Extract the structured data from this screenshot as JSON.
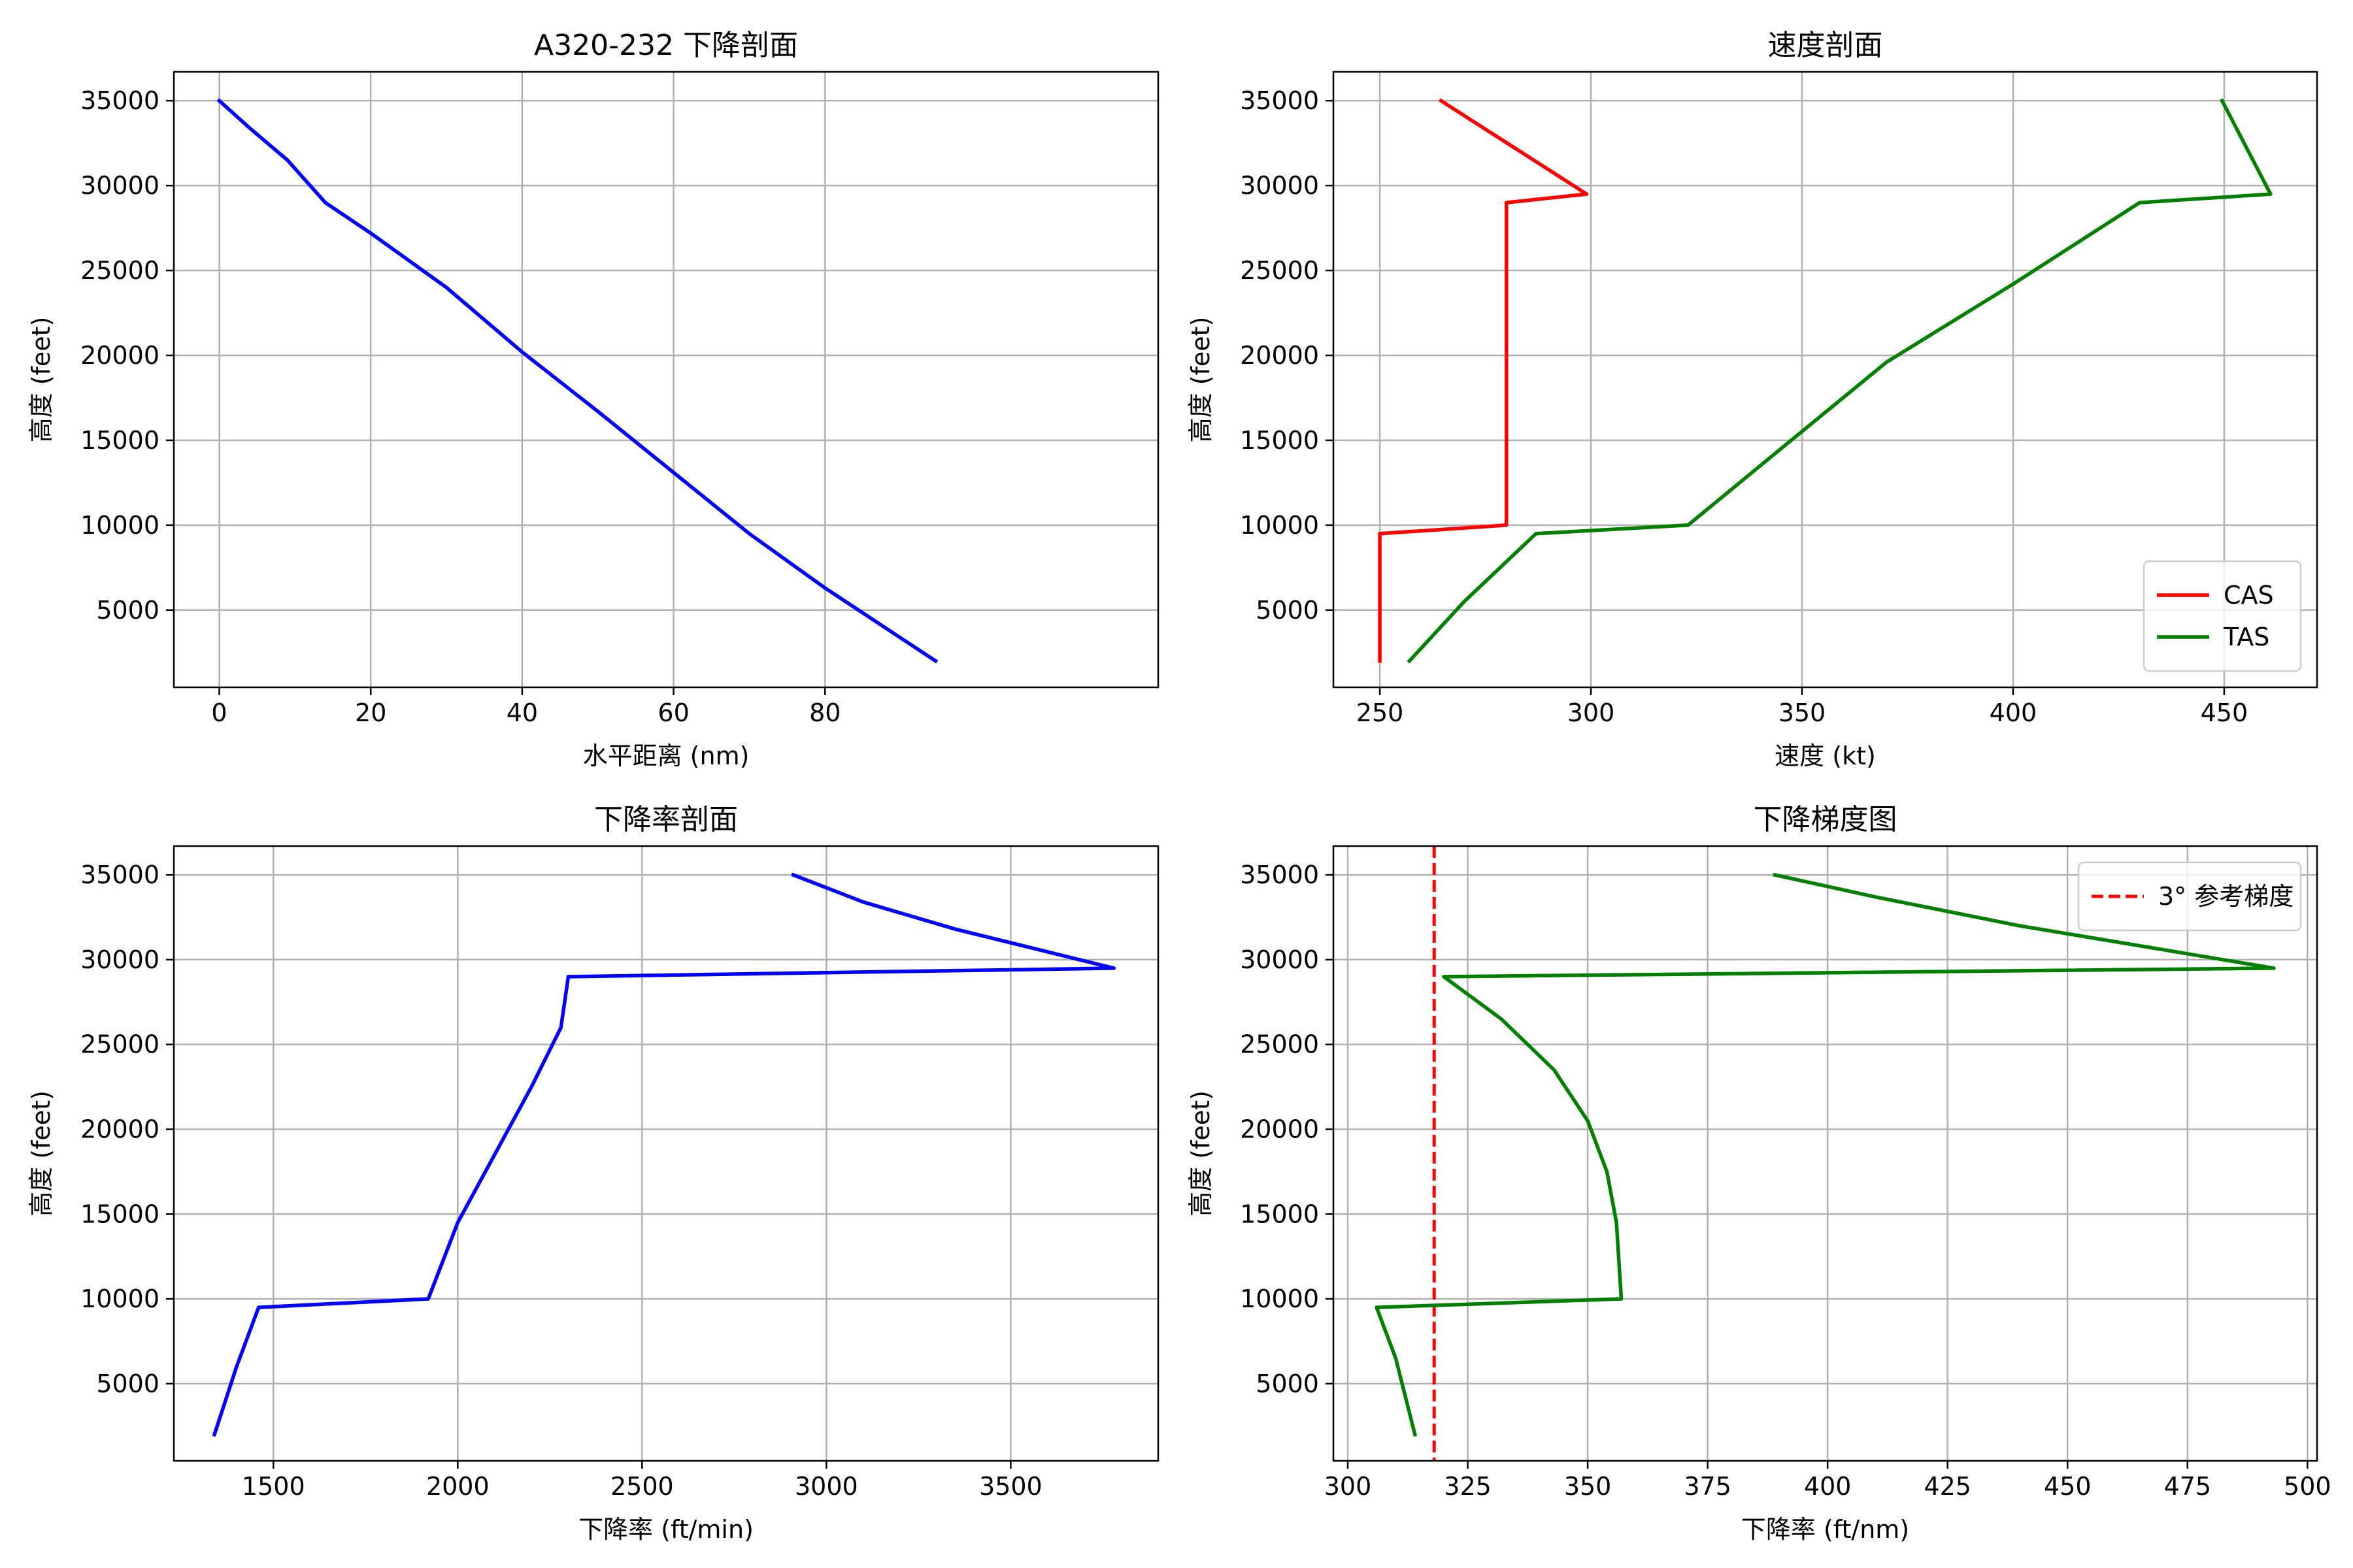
{
  "chart_data": [
    {
      "id": "profile",
      "type": "line",
      "title": "A320-232 下降剖面",
      "xlabel": "水平距离 (nm)",
      "ylabel": "高度 (feet)",
      "xlim": [
        -6,
        124
      ],
      "ylim": [
        450,
        36700
      ],
      "xticks": [
        0,
        20,
        40,
        60,
        80
      ],
      "yticks": [
        5000,
        10000,
        15000,
        20000,
        25000,
        30000,
        35000
      ],
      "grid": true,
      "legend": null,
      "series": [
        {
          "name": "",
          "color": "#0000ff",
          "points": [
            [
              0,
              35000
            ],
            [
              4,
              33400
            ],
            [
              9,
              31500
            ],
            [
              13,
              29500
            ],
            [
              14,
              29000
            ],
            [
              20,
              27200
            ],
            [
              30,
              24000
            ],
            [
              40,
              20200
            ],
            [
              50,
              16700
            ],
            [
              60,
              13100
            ],
            [
              70,
              9500
            ],
            [
              80,
              6300
            ],
            [
              94.6,
              2000
            ]
          ]
        }
      ]
    },
    {
      "id": "speed",
      "type": "line",
      "title": "速度剖面",
      "xlabel": "速度 (kt)",
      "ylabel": "高度 (feet)",
      "xlim": [
        239,
        472
      ],
      "ylim": [
        450,
        36700
      ],
      "xticks": [
        250,
        300,
        350,
        400,
        450
      ],
      "yticks": [
        5000,
        10000,
        15000,
        20000,
        25000,
        30000,
        35000
      ],
      "grid": true,
      "legend": "lower right",
      "series": [
        {
          "name": "CAS",
          "color": "#ff0000",
          "points": [
            [
              264.5,
              35000
            ],
            [
              299,
              29500
            ],
            [
              280,
              29000
            ],
            [
              280,
              10000
            ],
            [
              250,
              9500
            ],
            [
              250,
              2000
            ]
          ]
        },
        {
          "name": "TAS",
          "color": "#008000",
          "points": [
            [
              449.5,
              35000
            ],
            [
              461,
              29500
            ],
            [
              430,
              29000
            ],
            [
              400,
              24200
            ],
            [
              370,
              19600
            ],
            [
              345,
              14500
            ],
            [
              323,
              10000
            ],
            [
              287,
              9500
            ],
            [
              270,
              5500
            ],
            [
              257,
              2000
            ]
          ]
        }
      ]
    },
    {
      "id": "rate",
      "type": "line",
      "title": "下降率剖面",
      "xlabel": "下降率 (ft/min)",
      "ylabel": "高度 (feet)",
      "xlim": [
        1230,
        3900
      ],
      "ylim": [
        450,
        36700
      ],
      "xticks": [
        1500,
        2000,
        2500,
        3000,
        3500
      ],
      "yticks": [
        5000,
        10000,
        15000,
        20000,
        25000,
        30000,
        35000
      ],
      "grid": true,
      "legend": null,
      "series": [
        {
          "name": "",
          "color": "#0000ff",
          "points": [
            [
              2910,
              35000
            ],
            [
              3100,
              33400
            ],
            [
              3350,
              31800
            ],
            [
              3780,
              29500
            ],
            [
              2300,
              29000
            ],
            [
              2280,
              26000
            ],
            [
              2200,
              22500
            ],
            [
              2100,
              18500
            ],
            [
              2000,
              14500
            ],
            [
              1920,
              10000
            ],
            [
              1460,
              9500
            ],
            [
              1400,
              6000
            ],
            [
              1340,
              2000
            ]
          ]
        }
      ]
    },
    {
      "id": "gradient",
      "type": "line",
      "title": "下降梯度图",
      "xlabel": "下降率 (ft/nm)",
      "ylabel": "高度 (feet)",
      "xlim": [
        297,
        502
      ],
      "ylim": [
        450,
        36700
      ],
      "xticks": [
        300,
        325,
        350,
        375,
        400,
        425,
        450,
        475,
        500
      ],
      "yticks": [
        5000,
        10000,
        15000,
        20000,
        25000,
        30000,
        35000
      ],
      "grid": true,
      "legend": "upper right",
      "series": [
        {
          "name": "",
          "color": "#008000",
          "points": [
            [
              389,
              35000
            ],
            [
              410,
              33700
            ],
            [
              440,
              32000
            ],
            [
              493,
              29500
            ],
            [
              320,
              29000
            ],
            [
              332,
              26500
            ],
            [
              343,
              23500
            ],
            [
              350,
              20500
            ],
            [
              354,
              17500
            ],
            [
              356,
              14500
            ],
            [
              357,
              10000
            ],
            [
              306,
              9500
            ],
            [
              310,
              6500
            ],
            [
              314,
              2000
            ]
          ]
        }
      ],
      "reference_lines": [
        {
          "name": "3° 参考梯度",
          "orientation": "vertical",
          "value": 318,
          "color": "#ff0000",
          "style": "dashed"
        }
      ]
    }
  ]
}
